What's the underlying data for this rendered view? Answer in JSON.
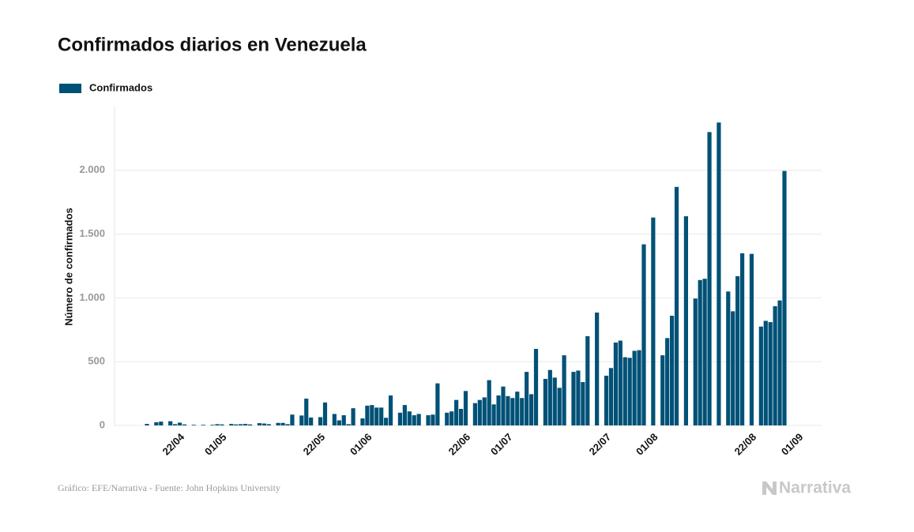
{
  "chart_data": {
    "type": "bar",
    "title": "Confirmados diarios en Venezuela",
    "y_label": "Número de confirmados",
    "categories": [
      null,
      null,
      null,
      null,
      "22/04",
      null,
      null,
      null,
      null,
      null,
      null,
      null,
      null,
      "01/05",
      null,
      null,
      null,
      null,
      null,
      null,
      null,
      null,
      null,
      null,
      null,
      null,
      null,
      null,
      null,
      null,
      null,
      null,
      null,
      null,
      "22/05",
      null,
      null,
      null,
      null,
      null,
      null,
      null,
      null,
      null,
      "01/06",
      null,
      null,
      null,
      null,
      null,
      null,
      null,
      null,
      null,
      null,
      null,
      null,
      null,
      null,
      null,
      null,
      null,
      null,
      null,
      null,
      "22/06",
      null,
      null,
      null,
      null,
      null,
      null,
      null,
      null,
      "01/07",
      null,
      null,
      null,
      null,
      null,
      null,
      null,
      null,
      null,
      null,
      null,
      null,
      null,
      null,
      null,
      null,
      null,
      null,
      null,
      null,
      "22/07",
      null,
      null,
      null,
      null,
      null,
      null,
      null,
      null,
      null,
      "01/08",
      null,
      null,
      null,
      null,
      null,
      null,
      null,
      null,
      null,
      null,
      null,
      null,
      null,
      null,
      null,
      null,
      null,
      null,
      null,
      null,
      "22/08",
      null,
      null,
      null,
      null,
      null,
      null,
      null,
      null,
      null,
      "01/09"
    ],
    "series": [
      {
        "name": "Confirmados",
        "color": "#005177",
        "values": [
          12,
          0,
          25,
          30,
          0,
          33,
          10,
          22,
          8,
          0,
          5,
          0,
          5,
          0,
          5,
          10,
          8,
          0,
          12,
          8,
          10,
          12,
          8,
          0,
          18,
          15,
          10,
          0,
          20,
          20,
          10,
          85,
          0,
          78,
          210,
          62,
          0,
          65,
          180,
          0,
          90,
          40,
          80,
          10,
          135,
          0,
          55,
          155,
          160,
          140,
          140,
          60,
          235,
          0,
          100,
          160,
          110,
          80,
          90,
          0,
          80,
          85,
          330,
          0,
          100,
          110,
          200,
          130,
          270,
          0,
          175,
          200,
          220,
          355,
          165,
          235,
          305,
          230,
          215,
          265,
          215,
          420,
          245,
          600,
          0,
          365,
          435,
          375,
          295,
          550,
          0,
          420,
          430,
          340,
          700,
          0,
          885,
          0,
          390,
          450,
          650,
          665,
          535,
          530,
          585,
          590,
          1420,
          0,
          1630,
          0,
          550,
          685,
          860,
          1870,
          0,
          1640,
          0,
          995,
          1140,
          1150,
          2300,
          0,
          2375,
          0,
          1050,
          895,
          1170,
          1350,
          0,
          1345,
          0,
          775,
          820,
          810,
          935,
          980,
          1995
        ]
      }
    ],
    "ylim": [
      0,
      2500
    ],
    "yticks": [
      0,
      500,
      {
        "value": 1000,
        "label": "1.000"
      },
      {
        "value": 1500,
        "label": "1.500"
      },
      {
        "value": 2000,
        "label": "2.000"
      }
    ],
    "grid": true
  },
  "footer": {
    "source": "Gráfico: EFE/Narrativa - Fuente: John Hopkins University",
    "logo": "Narrativa"
  }
}
